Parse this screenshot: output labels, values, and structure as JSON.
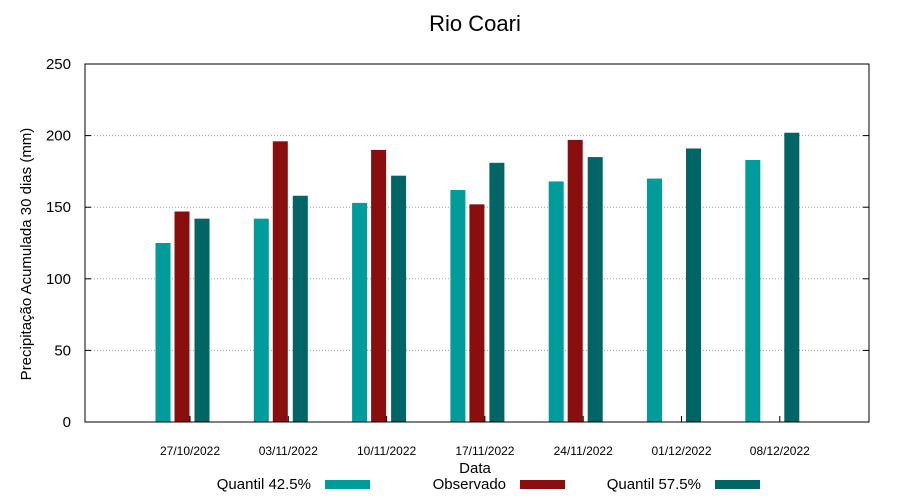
{
  "chart_data": {
    "type": "bar",
    "title": "Rio Coari",
    "xlabel": "Data",
    "ylabel": "Precipitação Acumulada 30 dias (mm)",
    "ylim": [
      0,
      250
    ],
    "yticks": [
      0,
      50,
      100,
      150,
      200,
      250
    ],
    "grid": "horizontal-dotted",
    "legend_position": "bottom",
    "categories": [
      "27/10/2022",
      "03/11/2022",
      "10/11/2022",
      "17/11/2022",
      "24/11/2022",
      "01/12/2022",
      "08/12/2022"
    ],
    "series": [
      {
        "name": "Quantil 42.5%",
        "color": "#009c9c",
        "values": [
          125,
          142,
          153,
          162,
          168,
          170,
          183
        ]
      },
      {
        "name": "Observado",
        "color": "#8b0e0e",
        "values": [
          147,
          196,
          190,
          152,
          197,
          null,
          null
        ]
      },
      {
        "name": "Quantil 57.5%",
        "color": "#006564",
        "values": [
          142,
          158,
          172,
          181,
          185,
          191,
          202
        ]
      }
    ]
  }
}
